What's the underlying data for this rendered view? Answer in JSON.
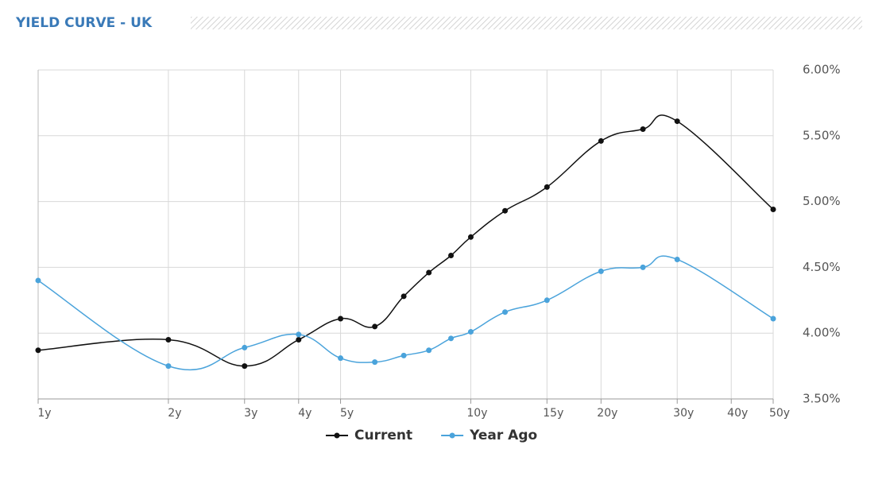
{
  "chart_data": {
    "type": "line",
    "title": "YIELD CURVE - UK",
    "x": [
      1,
      2,
      3,
      4,
      5,
      6,
      7,
      8,
      9,
      10,
      12,
      15,
      20,
      25,
      30,
      50
    ],
    "series": [
      {
        "name": "Current",
        "color": "#111111",
        "values": [
          3.87,
          3.95,
          3.75,
          3.95,
          4.11,
          4.05,
          4.28,
          4.46,
          4.59,
          4.73,
          4.93,
          5.11,
          5.46,
          5.55,
          5.61,
          4.94
        ]
      },
      {
        "name": "Year Ago",
        "color": "#4aa3db",
        "values": [
          4.4,
          3.75,
          3.89,
          3.99,
          3.81,
          3.78,
          3.83,
          3.87,
          3.96,
          4.01,
          4.16,
          4.25,
          4.47,
          4.5,
          4.56,
          4.11
        ]
      }
    ],
    "xscale": "log",
    "xlim": [
      1,
      50
    ],
    "xticks": [
      {
        "value": 1,
        "label": "1y"
      },
      {
        "value": 2,
        "label": "2y"
      },
      {
        "value": 3,
        "label": "3y"
      },
      {
        "value": 4,
        "label": "4y"
      },
      {
        "value": 5,
        "label": "5y"
      },
      {
        "value": 10,
        "label": "10y"
      },
      {
        "value": 15,
        "label": "15y"
      },
      {
        "value": 20,
        "label": "20y"
      },
      {
        "value": 30,
        "label": "30y"
      },
      {
        "value": 40,
        "label": "40y"
      },
      {
        "value": 50,
        "label": "50y"
      }
    ],
    "ylim": [
      3.5,
      6.0
    ],
    "yticks": [
      {
        "value": 3.5,
        "label": "3.50%"
      },
      {
        "value": 4.0,
        "label": "4.00%"
      },
      {
        "value": 4.5,
        "label": "4.50%"
      },
      {
        "value": 5.0,
        "label": "5.00%"
      },
      {
        "value": 5.5,
        "label": "5.50%"
      },
      {
        "value": 6.0,
        "label": "6.00%"
      }
    ],
    "grid": true,
    "legend": "bottom"
  }
}
